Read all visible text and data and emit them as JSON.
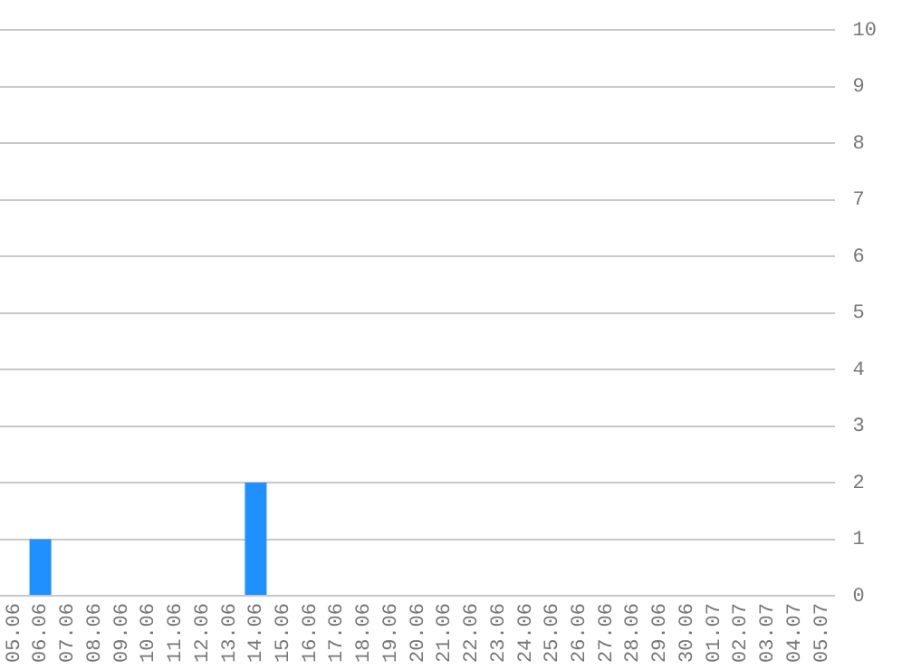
{
  "chart_data": {
    "type": "bar",
    "categories": [
      "05.06",
      "06.06",
      "07.06",
      "08.06",
      "09.06",
      "10.06",
      "11.06",
      "12.06",
      "13.06",
      "14.06",
      "15.06",
      "16.06",
      "17.06",
      "18.06",
      "19.06",
      "20.06",
      "21.06",
      "22.06",
      "23.06",
      "24.06",
      "25.06",
      "26.06",
      "27.06",
      "28.06",
      "29.06",
      "30.06",
      "01.07",
      "02.07",
      "03.07",
      "04.07",
      "05.07"
    ],
    "values": [
      0,
      1,
      0,
      0,
      0,
      0,
      0,
      0,
      0,
      2,
      0,
      0,
      0,
      0,
      0,
      0,
      0,
      0,
      0,
      0,
      0,
      0,
      0,
      0,
      0,
      0,
      0,
      0,
      0,
      0,
      0
    ],
    "color": "#1e90ff",
    "ylim": [
      0,
      10
    ],
    "yticks": [
      0,
      1,
      2,
      3,
      4,
      5,
      6,
      7,
      8,
      9,
      10
    ],
    "grid": "y"
  }
}
